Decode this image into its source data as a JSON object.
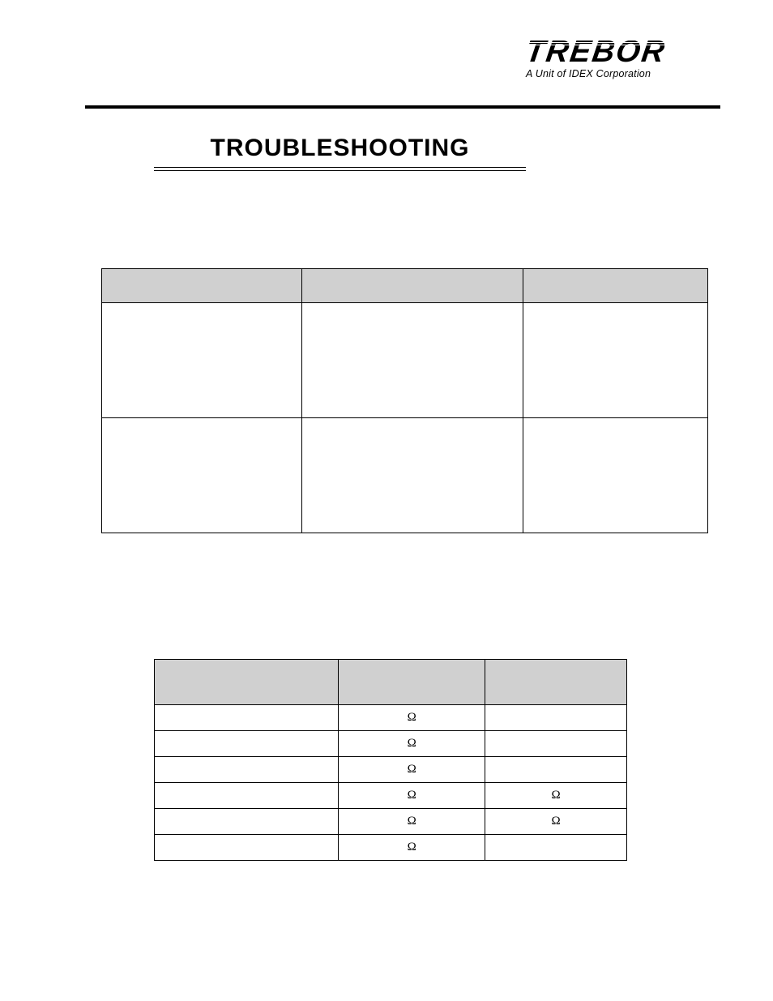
{
  "logo": {
    "word": "TREBOR",
    "subline": "A Unit of IDEX Corporation"
  },
  "title": "TROUBLESHOOTING",
  "table1": {
    "header_bg": "#d0d0d0",
    "border_color": "#000000",
    "columns": [
      "",
      "",
      ""
    ],
    "rows": [
      [
        "",
        "",
        ""
      ],
      [
        "",
        "",
        ""
      ]
    ]
  },
  "table2": {
    "header_bg": "#d0d0d0",
    "border_color": "#000000",
    "columns": [
      "",
      "",
      ""
    ],
    "rows": [
      [
        "",
        "Ω",
        ""
      ],
      [
        "",
        "Ω",
        ""
      ],
      [
        "",
        "Ω",
        ""
      ],
      [
        "",
        "Ω",
        "Ω"
      ],
      [
        "",
        "Ω",
        "Ω"
      ],
      [
        "",
        "Ω",
        ""
      ]
    ]
  }
}
